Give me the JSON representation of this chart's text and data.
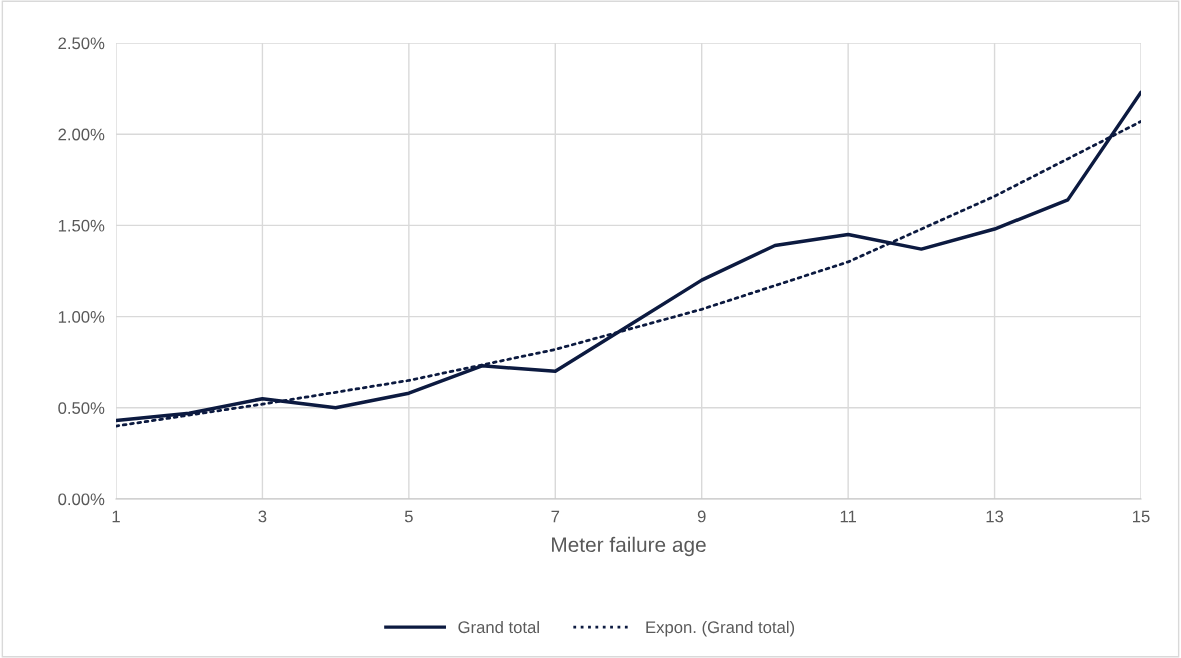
{
  "chart_data": {
    "type": "line",
    "xlabel": "Meter failure age",
    "xlim": [
      1,
      15
    ],
    "xticks": [
      1,
      3,
      5,
      7,
      9,
      11,
      13,
      15
    ],
    "ylim": [
      0,
      2.5
    ],
    "yticks": [
      {
        "value": 0,
        "label": "0.00%"
      },
      {
        "value": 0.5,
        "label": "0.50%"
      },
      {
        "value": 1,
        "label": "1.00%"
      },
      {
        "value": 1.5,
        "label": "1.50%"
      },
      {
        "value": 2,
        "label": "2.00%"
      },
      {
        "value": 2.5,
        "label": "2.50%"
      }
    ],
    "grid": true,
    "legend": "bottom",
    "marker": "none",
    "series": [
      {
        "name": "Grand total",
        "color": "#0c1a40",
        "line_style": "solid",
        "x": [
          1,
          2,
          3,
          4,
          5,
          6,
          7,
          8,
          9,
          10,
          11,
          12,
          13,
          14,
          15
        ],
        "values": [
          0.43,
          0.47,
          0.55,
          0.5,
          0.58,
          0.73,
          0.7,
          0.95,
          1.2,
          1.39,
          1.45,
          1.37,
          1.48,
          1.64,
          2.23
        ]
      },
      {
        "name": "Expon. (Grand total)",
        "color": "#0c1a40",
        "line_style": "dotted",
        "x": [
          1,
          3,
          5,
          7,
          9,
          11,
          13,
          15
        ],
        "values": [
          0.4,
          0.52,
          0.65,
          0.82,
          1.04,
          1.3,
          1.66,
          2.07
        ]
      }
    ]
  }
}
